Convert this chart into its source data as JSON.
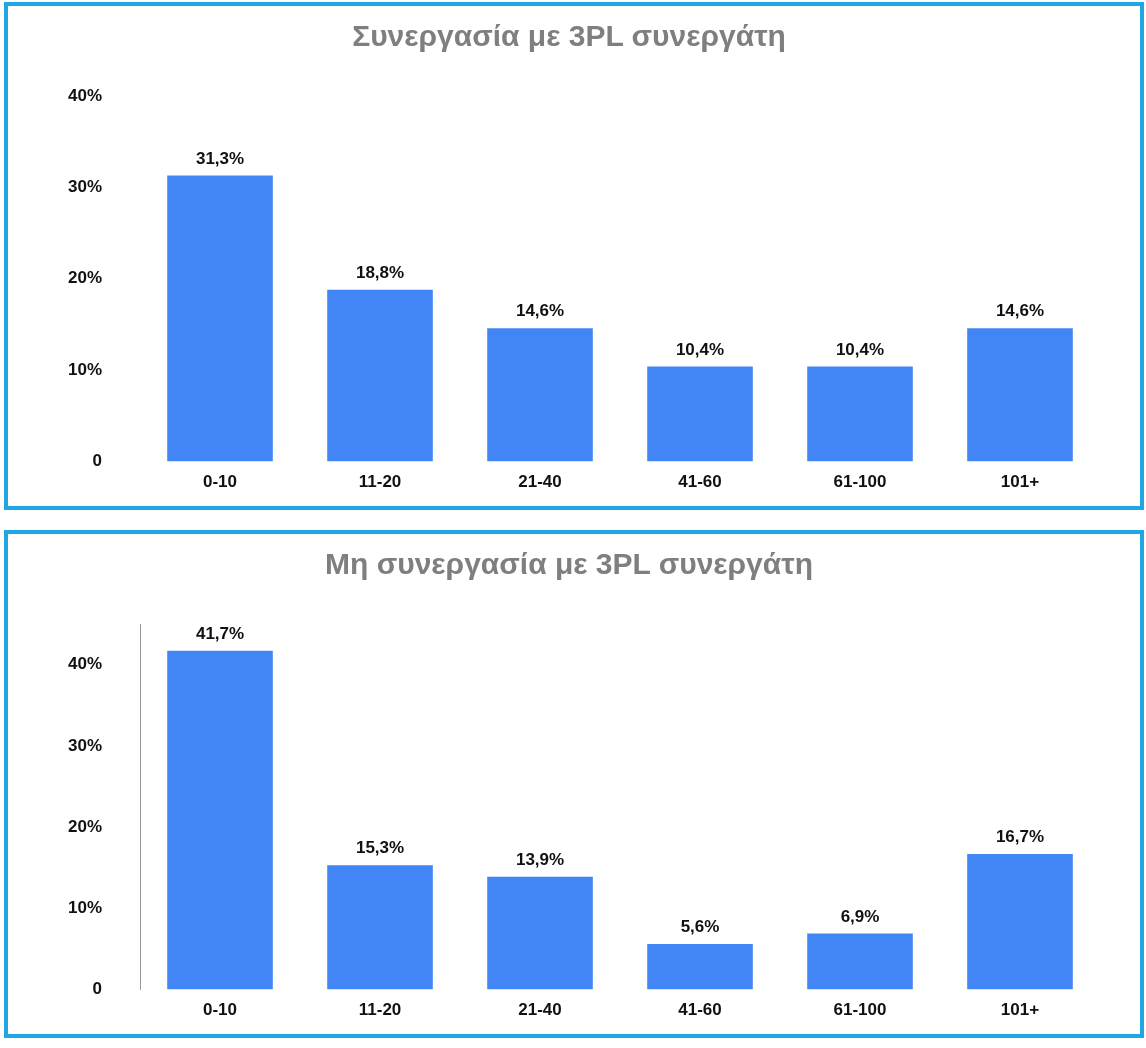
{
  "chart_data": [
    {
      "type": "bar",
      "title": "Συνεργασία με 3PL συνεργάτη",
      "categories": [
        "0-10",
        "11-20",
        "21-40",
        "41-60",
        "61-100",
        "101+"
      ],
      "values": [
        31.3,
        18.8,
        14.6,
        10.4,
        10.4,
        14.6
      ],
      "value_labels": [
        "31,3%",
        "18,8%",
        "14,6%",
        "10,4%",
        "10,4%",
        "14,6%"
      ],
      "color": "#4285f4",
      "ylim": [
        0,
        40
      ],
      "yticks": [
        {
          "value": 0,
          "label": "0"
        },
        {
          "value": 10,
          "label": "10%"
        },
        {
          "value": 20,
          "label": "20%"
        },
        {
          "value": 30,
          "label": "30%"
        },
        {
          "value": 40,
          "label": "40%"
        }
      ],
      "grid": false
    },
    {
      "type": "bar",
      "title": "Μη συνεργασία με 3PL συνεργάτη",
      "categories": [
        "0-10",
        "11-20",
        "21-40",
        "41-60",
        "61-100",
        "101+"
      ],
      "values": [
        41.7,
        15.3,
        13.9,
        5.6,
        6.9,
        16.7
      ],
      "value_labels": [
        "41,7%",
        "15,3%",
        "13,9%",
        "5,6%",
        "6,9%",
        "16,7%"
      ],
      "color": "#4285f4",
      "ylim": [
        0,
        45
      ],
      "yticks": [
        {
          "value": 0,
          "label": "0"
        },
        {
          "value": 10,
          "label": "10%"
        },
        {
          "value": 20,
          "label": "20%"
        },
        {
          "value": 30,
          "label": "30%"
        },
        {
          "value": 40,
          "label": "40%"
        }
      ],
      "grid": false
    }
  ]
}
